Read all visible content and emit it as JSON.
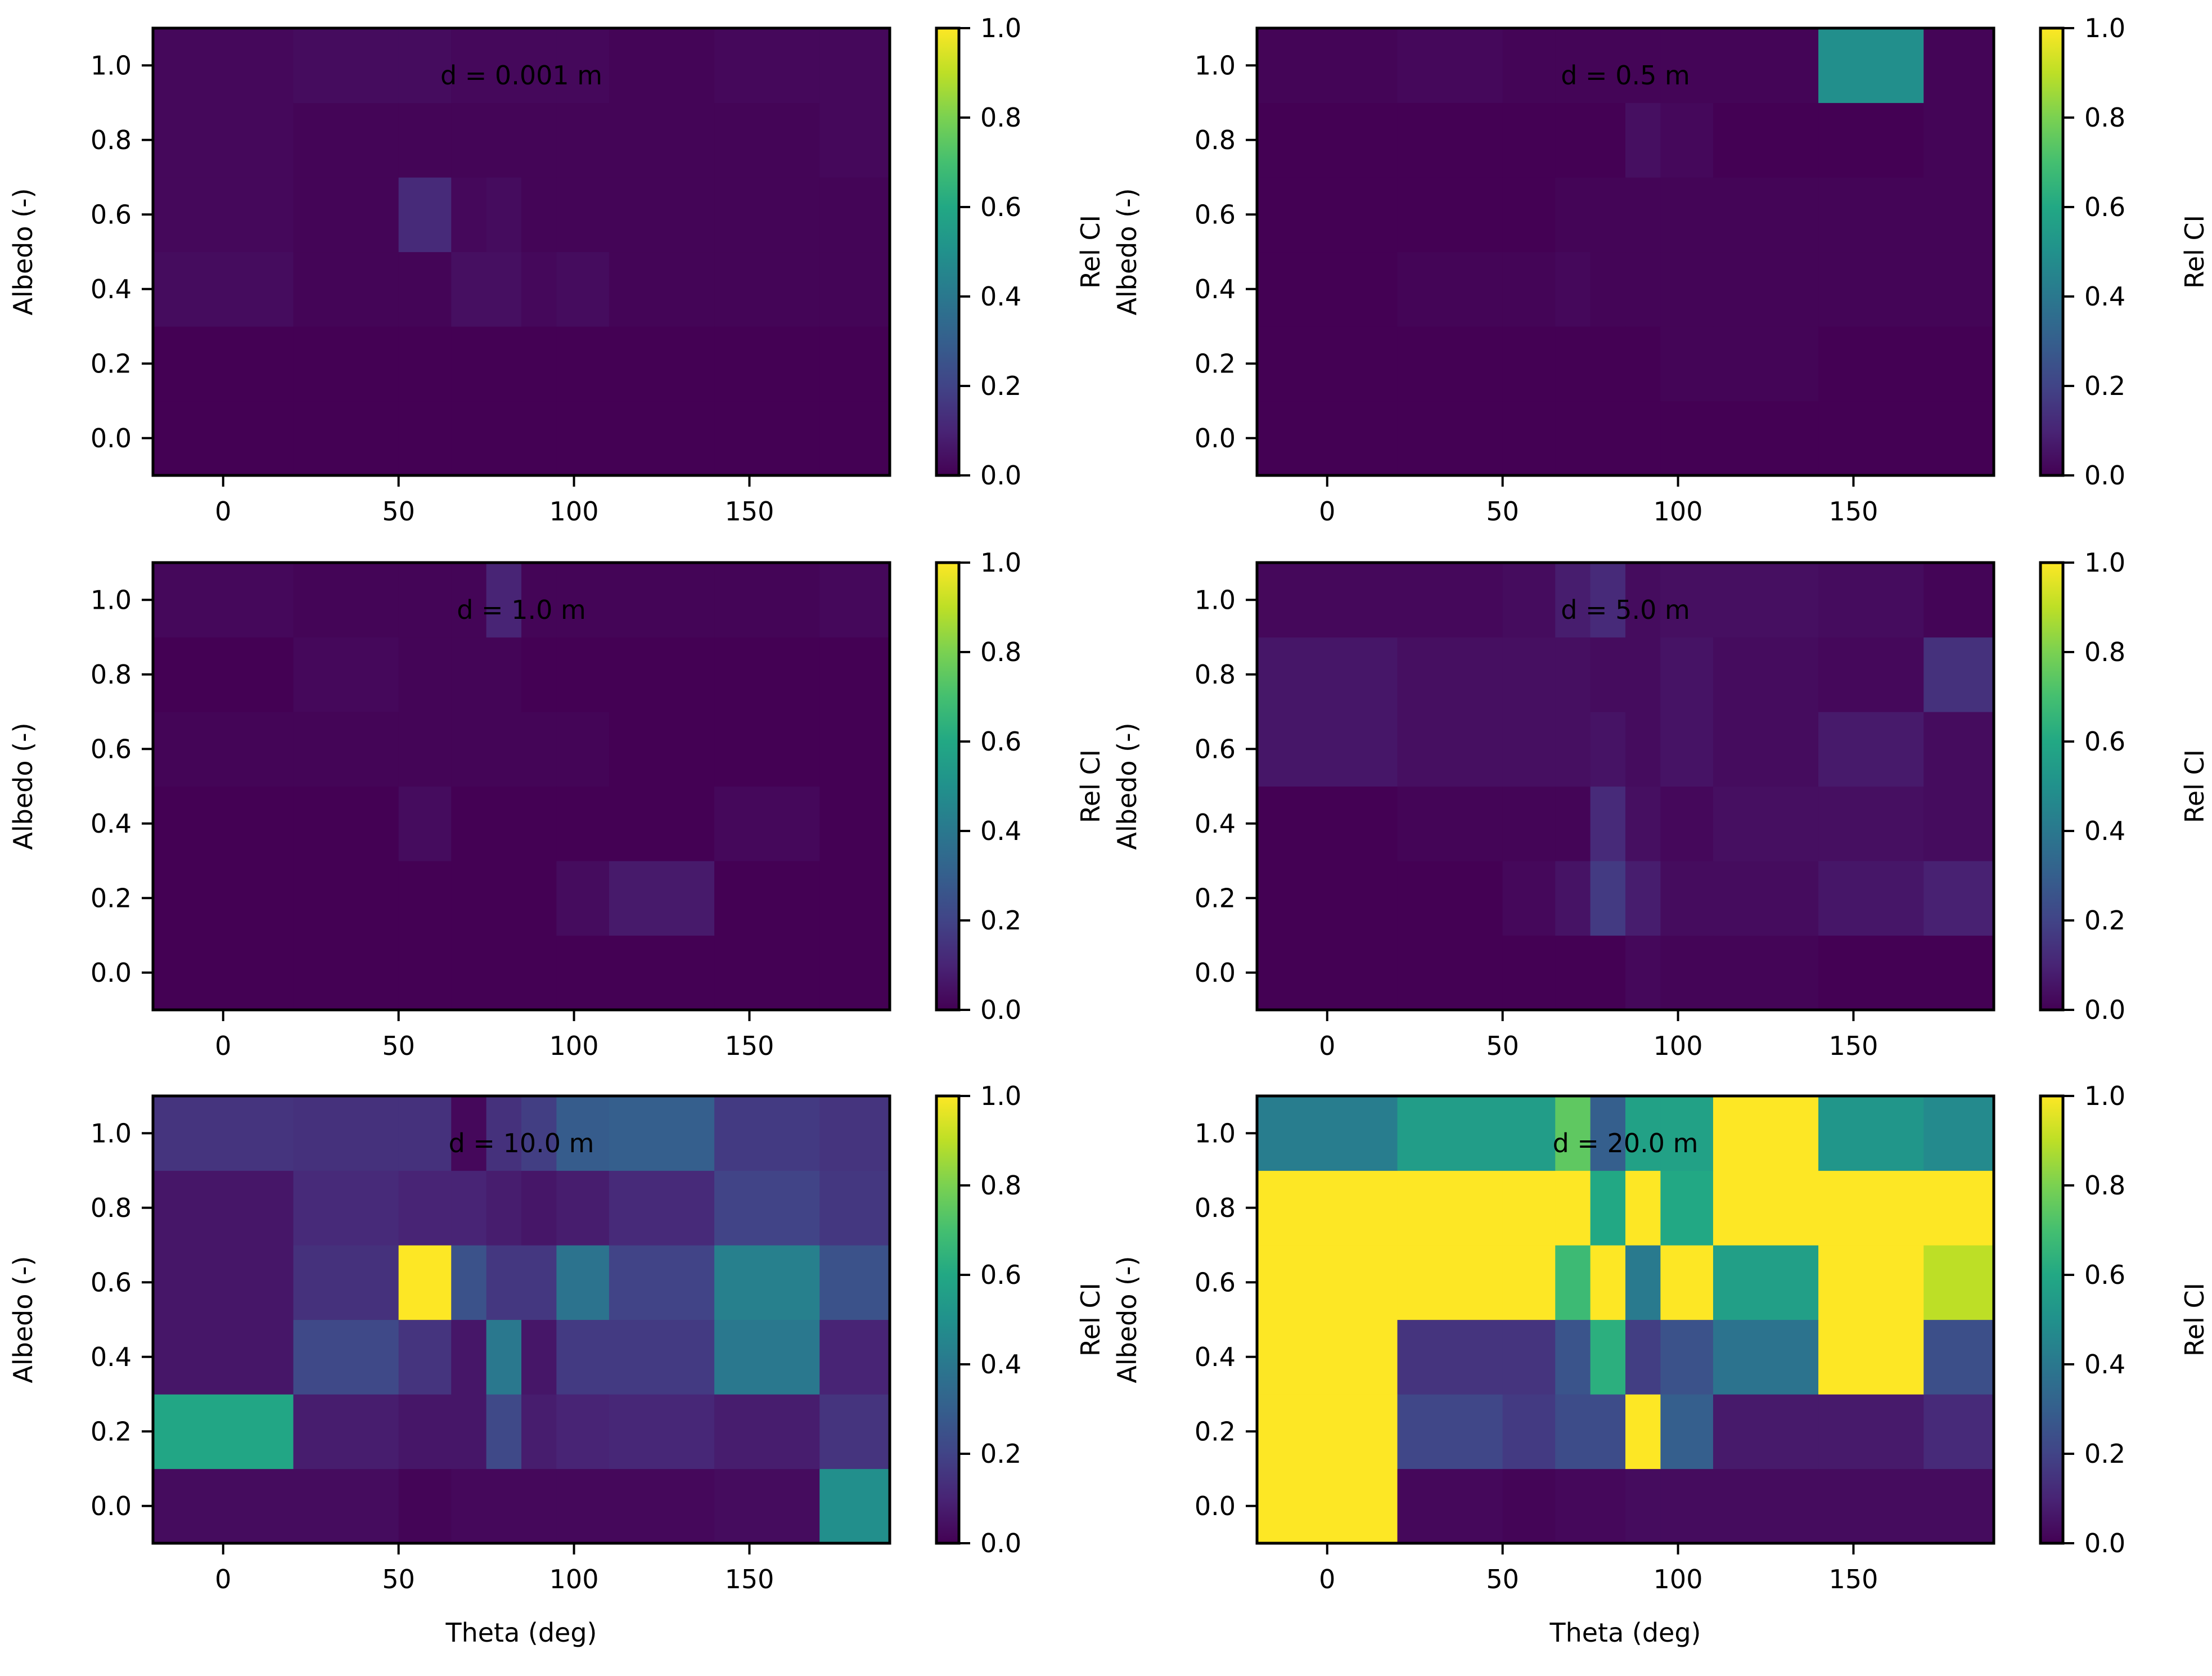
{
  "chart_data": {
    "colormap": "viridis",
    "theta_edges": [
      -20,
      20,
      50,
      65,
      75,
      85,
      95,
      110,
      140,
      170,
      190
    ],
    "albedo_edges": [
      -0.1,
      0.1,
      0.3,
      0.5,
      0.7,
      0.9,
      1.1
    ],
    "shared_axes": {
      "xlabel": "Theta (deg)",
      "ylabel": "Albedo (-)",
      "xticks": [
        0,
        50,
        100,
        150
      ],
      "xtick_labels": [
        "0",
        "50",
        "100",
        "150"
      ],
      "yticks": [
        0.0,
        0.2,
        0.4,
        0.6,
        0.8,
        1.0
      ],
      "ytick_labels": [
        "0.0",
        "0.2",
        "0.4",
        "0.6",
        "0.8",
        "1.0"
      ],
      "xlim": [
        -20,
        190
      ],
      "ylim": [
        -0.1,
        1.1
      ]
    },
    "colorbar": {
      "label": "Rel CI",
      "range": [
        0,
        1
      ],
      "ticks": [
        0.0,
        0.2,
        0.4,
        0.6,
        0.8,
        1.0
      ],
      "tick_labels": [
        "0.0",
        "0.2",
        "0.4",
        "0.6",
        "0.8",
        "1.0"
      ]
    },
    "panels": [
      {
        "type": "heatmap",
        "title": "d = 0.001 m",
        "show_xlabel": false,
        "values": [
          [
            0.0,
            0.0,
            0.0,
            0.0,
            0.0,
            0.0,
            0.0,
            0.0,
            0.0,
            0.0
          ],
          [
            0.0,
            0.0,
            0.0,
            0.0,
            0.0,
            0.0,
            0.0,
            0.0,
            0.0,
            0.0
          ],
          [
            0.03,
            0.01,
            0.01,
            0.04,
            0.04,
            0.02,
            0.03,
            0.01,
            0.01,
            0.01
          ],
          [
            0.02,
            0.01,
            0.12,
            0.02,
            0.03,
            0.01,
            0.01,
            0.01,
            0.01,
            0.01
          ],
          [
            0.02,
            0.01,
            0.01,
            0.01,
            0.01,
            0.01,
            0.01,
            0.01,
            0.01,
            0.02
          ],
          [
            0.02,
            0.03,
            0.03,
            0.02,
            0.02,
            0.02,
            0.02,
            0.01,
            0.02,
            0.02
          ]
        ]
      },
      {
        "type": "heatmap",
        "title": "d = 0.5 m",
        "show_xlabel": false,
        "values": [
          [
            0.0,
            0.0,
            0.0,
            0.0,
            0.0,
            0.0,
            0.0,
            0.0,
            0.0,
            0.0
          ],
          [
            0.0,
            0.0,
            0.0,
            0.0,
            0.0,
            0.0,
            0.01,
            0.01,
            0.0,
            0.0
          ],
          [
            0.0,
            0.01,
            0.01,
            0.02,
            0.01,
            0.01,
            0.01,
            0.01,
            0.01,
            0.01
          ],
          [
            0.0,
            0.0,
            0.0,
            0.01,
            0.01,
            0.01,
            0.01,
            0.01,
            0.01,
            0.01
          ],
          [
            0.0,
            0.0,
            0.0,
            0.0,
            0.0,
            0.04,
            0.02,
            0.0,
            0.0,
            0.01
          ],
          [
            0.01,
            0.02,
            0.01,
            0.01,
            0.01,
            0.01,
            0.01,
            0.01,
            0.49,
            0.01
          ]
        ]
      },
      {
        "type": "heatmap",
        "title": "d = 1.0 m",
        "show_xlabel": false,
        "values": [
          [
            0.0,
            0.0,
            0.0,
            0.0,
            0.0,
            0.0,
            0.0,
            0.0,
            0.0,
            0.0
          ],
          [
            0.0,
            0.0,
            0.0,
            0.0,
            0.0,
            0.0,
            0.03,
            0.07,
            0.0,
            0.0
          ],
          [
            0.0,
            0.0,
            0.03,
            0.0,
            0.0,
            0.0,
            0.0,
            0.0,
            0.02,
            0.0
          ],
          [
            0.01,
            0.01,
            0.01,
            0.01,
            0.01,
            0.01,
            0.01,
            0.0,
            0.0,
            0.0
          ],
          [
            0.0,
            0.02,
            0.01,
            0.01,
            0.01,
            0.0,
            0.0,
            0.0,
            0.0,
            0.0
          ],
          [
            0.02,
            0.01,
            0.01,
            0.01,
            0.1,
            0.01,
            0.01,
            0.01,
            0.01,
            0.02
          ]
        ]
      },
      {
        "type": "heatmap",
        "title": "d = 5.0 m",
        "show_xlabel": false,
        "values": [
          [
            0.0,
            0.0,
            0.0,
            0.0,
            0.0,
            0.02,
            0.01,
            0.01,
            0.0,
            0.0
          ],
          [
            0.0,
            0.0,
            0.02,
            0.05,
            0.17,
            0.08,
            0.03,
            0.03,
            0.06,
            0.09
          ],
          [
            0.0,
            0.01,
            0.01,
            0.01,
            0.12,
            0.04,
            0.02,
            0.04,
            0.04,
            0.03
          ],
          [
            0.06,
            0.04,
            0.04,
            0.04,
            0.05,
            0.03,
            0.05,
            0.03,
            0.07,
            0.03
          ],
          [
            0.06,
            0.04,
            0.04,
            0.04,
            0.03,
            0.03,
            0.05,
            0.03,
            0.02,
            0.14
          ],
          [
            0.02,
            0.02,
            0.03,
            0.08,
            0.12,
            0.03,
            0.04,
            0.04,
            0.03,
            0.01
          ]
        ]
      },
      {
        "type": "heatmap",
        "title": "d = 10.0 m",
        "show_xlabel": true,
        "values": [
          [
            0.03,
            0.03,
            0.01,
            0.02,
            0.02,
            0.02,
            0.02,
            0.02,
            0.03,
            0.49
          ],
          [
            0.59,
            0.08,
            0.06,
            0.06,
            0.22,
            0.08,
            0.1,
            0.11,
            0.08,
            0.15
          ],
          [
            0.06,
            0.22,
            0.15,
            0.06,
            0.4,
            0.06,
            0.17,
            0.17,
            0.4,
            0.1
          ],
          [
            0.06,
            0.14,
            1.0,
            0.25,
            0.16,
            0.16,
            0.38,
            0.2,
            0.43,
            0.25
          ],
          [
            0.06,
            0.12,
            0.1,
            0.1,
            0.08,
            0.06,
            0.08,
            0.12,
            0.2,
            0.16
          ],
          [
            0.15,
            0.14,
            0.14,
            0.02,
            0.14,
            0.18,
            0.29,
            0.3,
            0.17,
            0.15
          ]
        ]
      },
      {
        "type": "heatmap",
        "title": "d = 20.0 m",
        "show_xlabel": true,
        "values": [
          [
            1.0,
            0.02,
            0.01,
            0.02,
            0.02,
            0.03,
            0.03,
            0.03,
            0.03,
            0.03
          ],
          [
            1.0,
            0.21,
            0.17,
            0.23,
            0.23,
            1.0,
            0.3,
            0.07,
            0.07,
            0.12
          ],
          [
            1.0,
            0.15,
            0.15,
            0.26,
            0.63,
            0.18,
            0.25,
            0.38,
            1.0,
            0.24
          ],
          [
            1.0,
            1.0,
            1.0,
            0.68,
            1.0,
            0.41,
            1.0,
            0.56,
            1.0,
            0.9
          ],
          [
            1.0,
            1.0,
            1.0,
            1.0,
            0.6,
            1.0,
            0.6,
            1.0,
            1.0,
            1.0
          ],
          [
            0.42,
            0.55,
            0.55,
            0.75,
            0.3,
            0.57,
            0.57,
            1.0,
            0.52,
            0.47
          ]
        ]
      }
    ]
  }
}
